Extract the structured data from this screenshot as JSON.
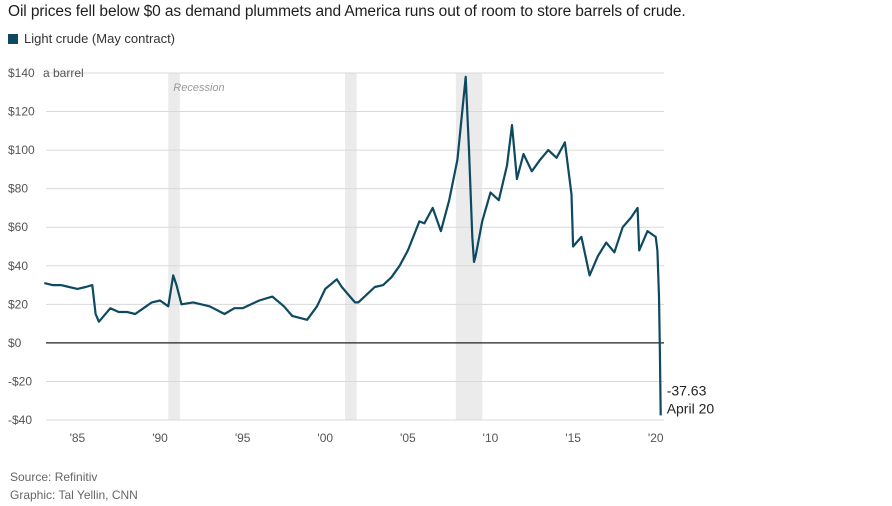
{
  "title": "Oil prices fell below $0 as demand plummets and America runs out of room to store barrels of crude.",
  "source": "Source: Refinitiv",
  "credit": "Graphic: Tal Yellin, CNN",
  "colors": {
    "line": "#0d4a5f",
    "recession": "#ebebeb",
    "grid": "#d9d9d9",
    "zero": "#222222"
  },
  "chart_data": {
    "type": "line",
    "title": "Oil prices fell below $0 as demand plummets and America runs out of room to store barrels of crude.",
    "series": [
      {
        "name": "Light crude (May contract)",
        "x": [
          1983.0,
          1983.5,
          1984.0,
          1984.5,
          1985.0,
          1985.5,
          1985.9,
          1986.1,
          1986.3,
          1986.6,
          1987.0,
          1987.5,
          1988.0,
          1988.5,
          1989.0,
          1989.5,
          1990.0,
          1990.5,
          1990.8,
          1991.0,
          1991.3,
          1992.0,
          1993.0,
          1993.9,
          1994.5,
          1995.0,
          1996.0,
          1996.8,
          1997.5,
          1998.0,
          1998.9,
          1999.5,
          2000.0,
          2000.7,
          2001.0,
          2001.5,
          2001.8,
          2002.0,
          2002.5,
          2003.0,
          2003.5,
          2004.0,
          2004.5,
          2005.0,
          2005.7,
          2006.0,
          2006.5,
          2007.0,
          2007.5,
          2008.0,
          2008.5,
          2008.7,
          2008.9,
          2009.0,
          2009.1,
          2009.5,
          2010.0,
          2010.5,
          2011.0,
          2011.3,
          2011.6,
          2012.0,
          2012.5,
          2013.0,
          2013.5,
          2014.0,
          2014.5,
          2014.9,
          2015.0,
          2015.5,
          2016.0,
          2016.5,
          2017.0,
          2017.5,
          2018.0,
          2018.5,
          2018.9,
          2019.0,
          2019.5,
          2020.0,
          2020.1,
          2020.2,
          2020.25,
          2020.3
        ],
        "values": [
          31,
          30,
          30,
          29,
          28,
          29,
          30,
          15,
          11,
          14,
          18,
          16,
          16,
          15,
          18,
          21,
          22,
          19,
          35,
          30,
          20,
          21,
          19,
          15,
          18,
          18,
          22,
          24,
          19,
          14,
          12,
          19,
          28,
          33,
          29,
          24,
          21,
          21,
          25,
          29,
          30,
          34,
          40,
          48,
          63,
          62,
          70,
          58,
          74,
          95,
          138,
          100,
          55,
          42,
          45,
          63,
          78,
          74,
          92,
          113,
          85,
          98,
          89,
          95,
          100,
          96,
          104,
          77,
          50,
          55,
          35,
          45,
          52,
          47,
          60,
          65,
          70,
          48,
          58,
          55,
          48,
          24,
          -5,
          -37.63
        ]
      }
    ],
    "recessions": [
      [
        1990.5,
        1991.2
      ],
      [
        2001.2,
        2001.9
      ],
      [
        2007.9,
        2009.5
      ]
    ],
    "recession_label": "Recession",
    "x_ticks": [
      1985,
      1990,
      1995,
      2000,
      2005,
      2010,
      2015,
      2020
    ],
    "x_tick_labels": [
      "'85",
      "'90",
      "'95",
      "'00",
      "'05",
      "'10",
      "'15",
      "'20"
    ],
    "y_ticks": [
      -40,
      -20,
      0,
      20,
      40,
      60,
      80,
      100,
      120,
      140
    ],
    "y_tick_labels": [
      "-$40",
      "-$20",
      "$0",
      "$20",
      "$40",
      "$60",
      "$80",
      "$100",
      "$120",
      "$140"
    ],
    "y_unit": "a barrel",
    "xlim": [
      1983.1,
      2020.5
    ],
    "ylim": [
      -40,
      140
    ],
    "annotation": {
      "value": "-37.63",
      "date": "April 20"
    },
    "grid": true,
    "legend_position": "top-left"
  }
}
